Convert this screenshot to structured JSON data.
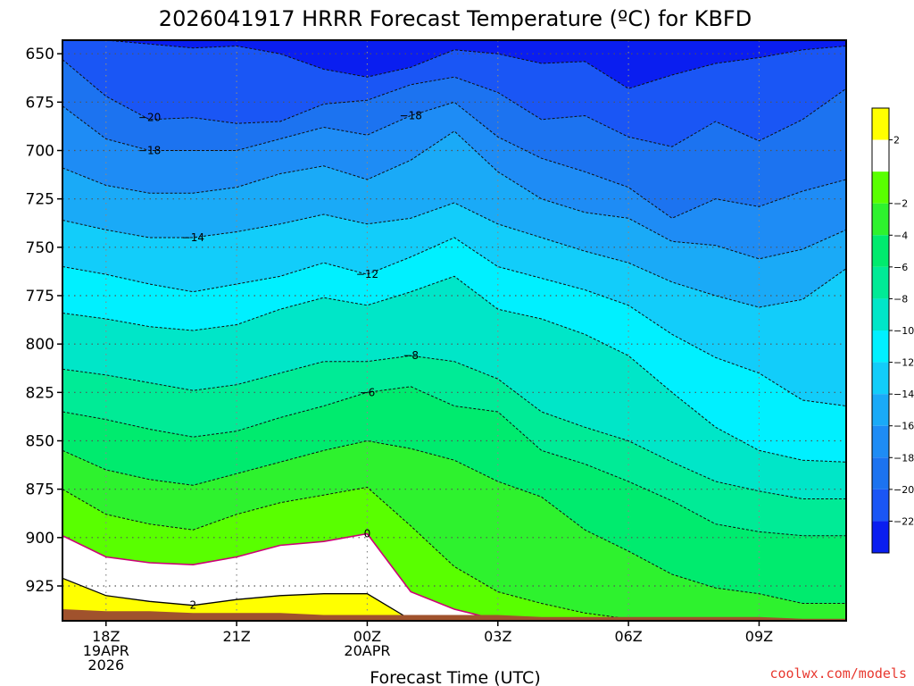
{
  "chart_data": {
    "type": "contour",
    "title": "2026041917 HRRR Forecast Temperature (ºC) for KBFD",
    "xlabel": "Forecast Time (UTC)",
    "ylabel": "",
    "y_ticks": [
      650,
      675,
      700,
      725,
      750,
      775,
      800,
      825,
      850,
      875,
      900,
      925
    ],
    "ylim": [
      943,
      643
    ],
    "x_ticks": [
      {
        "h": 1,
        "lines": [
          "18Z",
          "19APR",
          "2026"
        ]
      },
      {
        "h": 4,
        "lines": [
          "21Z"
        ]
      },
      {
        "h": 7,
        "lines": [
          "00Z",
          "20APR"
        ]
      },
      {
        "h": 10,
        "lines": [
          "03Z"
        ]
      },
      {
        "h": 13,
        "lines": [
          "06Z"
        ]
      },
      {
        "h": 16,
        "lines": [
          "09Z"
        ]
      }
    ],
    "xlim": [
      0,
      18
    ],
    "hours": [
      0,
      1,
      2,
      3,
      4,
      5,
      6,
      7,
      8,
      9,
      10,
      11,
      12,
      13,
      14,
      15,
      16,
      17,
      18
    ],
    "color_levels": [
      -24,
      -22,
      -20,
      -18,
      -16,
      -14,
      -12,
      -10,
      -8,
      -6,
      -4,
      -2,
      0,
      2,
      4
    ],
    "colors": [
      "#0a1ef0",
      "#1a56f5",
      "#1c73f0",
      "#1e8cf5",
      "#1aaaf7",
      "#12cdfa",
      "#00f0ff",
      "#00e6c8",
      "#00eb96",
      "#00eb6e",
      "#2ef22e",
      "#59ff00",
      "#ffffff",
      "#ffff00"
    ],
    "colorbar_labels": [
      -22,
      -20,
      -18,
      -16,
      -14,
      -12,
      -10,
      -8,
      -6,
      -4,
      -2,
      2
    ],
    "contour_levels": [
      -22,
      -20,
      -18,
      -16,
      -14,
      -12,
      -10,
      -8,
      -6,
      -4,
      -2,
      0,
      2
    ],
    "line_colors": {
      "negative": "#111111",
      "zero": "#cc0077",
      "positive": "#000000"
    },
    "isotherms": [
      {
        "t": -22,
        "p": [
          643,
          643,
          645,
          647,
          646,
          650,
          658,
          662,
          657,
          648,
          650,
          655,
          654,
          668,
          661,
          655,
          652,
          648,
          646
        ]
      },
      {
        "t": -20,
        "p": [
          653,
          672,
          684,
          683,
          686,
          685,
          676,
          674,
          666,
          662,
          670,
          684,
          682,
          693,
          698,
          685,
          695,
          684,
          668
        ]
      },
      {
        "t": -18,
        "p": [
          677,
          694,
          700,
          700,
          700,
          694,
          688,
          692,
          682,
          675,
          693,
          704,
          711,
          719,
          735,
          725,
          729,
          721,
          715
        ]
      },
      {
        "t": -16,
        "p": [
          709,
          718,
          722,
          722,
          719,
          712,
          708,
          715,
          705,
          690,
          711,
          725,
          732,
          735,
          747,
          749,
          756,
          751,
          741
        ]
      },
      {
        "t": -14,
        "p": [
          736,
          741,
          745,
          745,
          742,
          738,
          733,
          738,
          735,
          727,
          738,
          745,
          752,
          758,
          768,
          775,
          781,
          777,
          761
        ]
      },
      {
        "t": -12,
        "p": [
          760,
          764,
          769,
          773,
          769,
          765,
          758,
          764,
          755,
          745,
          760,
          766,
          772,
          780,
          795,
          807,
          815,
          829,
          832
        ]
      },
      {
        "t": -10,
        "p": [
          784,
          787,
          791,
          793,
          790,
          782,
          776,
          780,
          773,
          765,
          782,
          787,
          795,
          806,
          825,
          843,
          855,
          860,
          861
        ]
      },
      {
        "t": -8,
        "p": [
          813,
          816,
          820,
          824,
          821,
          815,
          809,
          809,
          806,
          809,
          818,
          835,
          843,
          850,
          861,
          871,
          876,
          880,
          880
        ]
      },
      {
        "t": -6,
        "p": [
          835,
          839,
          844,
          848,
          845,
          838,
          832,
          825,
          822,
          832,
          835,
          855,
          862,
          871,
          881,
          893,
          897,
          899,
          899
        ]
      },
      {
        "t": -4,
        "p": [
          855,
          865,
          870,
          873,
          867,
          861,
          855,
          850,
          854,
          860,
          871,
          879,
          896,
          907,
          919,
          926,
          929,
          934,
          934
        ]
      },
      {
        "t": -2,
        "p": [
          875,
          888,
          893,
          896,
          888,
          882,
          878,
          874,
          894,
          915,
          928,
          934,
          939,
          942,
          943,
          943,
          943,
          943,
          943
        ]
      },
      {
        "t": 0,
        "p": [
          899,
          910,
          913,
          914,
          910,
          904,
          902,
          898,
          928,
          937,
          943,
          943,
          943,
          943,
          943,
          943,
          943,
          943,
          943
        ]
      },
      {
        "t": 2,
        "p": [
          921,
          930,
          933,
          935,
          932,
          930,
          929,
          929,
          943,
          943,
          943,
          943,
          943,
          943,
          943,
          943,
          943,
          943,
          943
        ]
      }
    ],
    "contour_labels": [
      {
        "text": "−20",
        "h": 2.0,
        "p": 683
      },
      {
        "text": "−18",
        "h": 2.0,
        "p": 700
      },
      {
        "text": "−18",
        "h": 8.0,
        "p": 682
      },
      {
        "text": "−14",
        "h": 3.0,
        "p": 745
      },
      {
        "text": "−12",
        "h": 7.0,
        "p": 764
      },
      {
        "text": "−8",
        "h": 8.0,
        "p": 806
      },
      {
        "text": "−6",
        "h": 7.0,
        "p": 825
      },
      {
        "text": "0",
        "h": 7.0,
        "p": 898
      },
      {
        "text": "2",
        "h": 3.0,
        "p": 935
      }
    ],
    "surface_pressure": [
      937,
      938,
      938,
      939,
      939,
      939,
      940,
      940,
      940,
      940,
      940,
      941,
      941,
      941,
      941,
      941,
      941,
      942,
      942
    ],
    "surface_color": "#a0522d",
    "grid": true
  },
  "credit": "coolwx.com/models"
}
